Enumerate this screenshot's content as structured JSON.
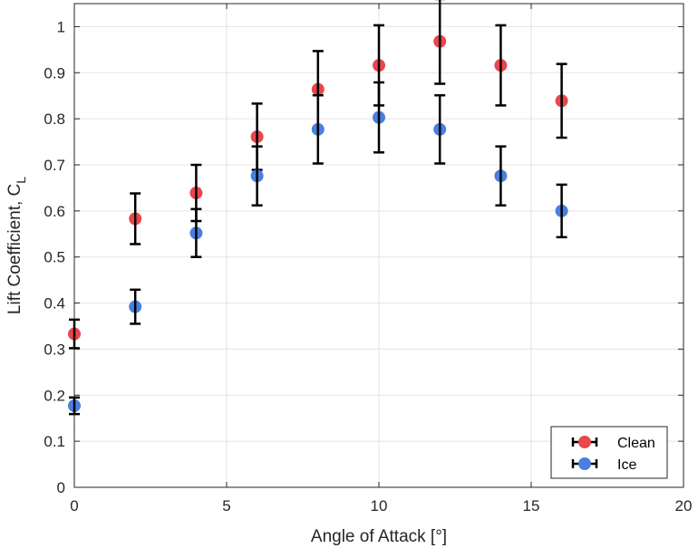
{
  "chart_data": {
    "type": "scatter",
    "xlabel": "Angle of Attack [°]",
    "ylabel": "Lift Coefficient, C",
    "ylabel_subscript": "L",
    "xlim": [
      0,
      20
    ],
    "ylim": [
      0,
      1.05
    ],
    "x_ticks": [
      0,
      5,
      10,
      15,
      20
    ],
    "y_ticks": [
      0,
      0.1,
      0.2,
      0.3,
      0.4,
      0.5,
      0.6,
      0.7,
      0.8,
      0.9,
      1
    ],
    "x_tick_labels": [
      "0",
      "5",
      "10",
      "15",
      "20"
    ],
    "y_tick_labels": [
      "0",
      "0.1",
      "0.2",
      "0.3",
      "0.4",
      "0.5",
      "0.6",
      "0.7",
      "0.8",
      "0.9",
      "1"
    ],
    "grid": true,
    "legend_position": "bottom-right",
    "series": [
      {
        "name": "Clean",
        "color": "#e8474b",
        "x": [
          0,
          2,
          4,
          6,
          8,
          10,
          12,
          14,
          16
        ],
        "y": [
          0.333,
          0.583,
          0.639,
          0.761,
          0.864,
          0.916,
          0.968,
          0.916,
          0.839
        ],
        "err_low": [
          0.031,
          0.055,
          0.061,
          0.072,
          0.083,
          0.087,
          0.092,
          0.087,
          0.08
        ],
        "err_high": [
          0.031,
          0.055,
          0.061,
          0.072,
          0.083,
          0.087,
          0.092,
          0.087,
          0.08
        ]
      },
      {
        "name": "Ice",
        "color": "#4a7fe0",
        "x": [
          0,
          2,
          4,
          6,
          8,
          10,
          12,
          14,
          16
        ],
        "y": [
          0.177,
          0.392,
          0.552,
          0.676,
          0.777,
          0.803,
          0.777,
          0.676,
          0.6
        ],
        "err_low": [
          0.018,
          0.037,
          0.052,
          0.064,
          0.074,
          0.076,
          0.074,
          0.064,
          0.057
        ],
        "err_high": [
          0.018,
          0.037,
          0.052,
          0.064,
          0.074,
          0.076,
          0.074,
          0.064,
          0.057
        ]
      }
    ]
  }
}
